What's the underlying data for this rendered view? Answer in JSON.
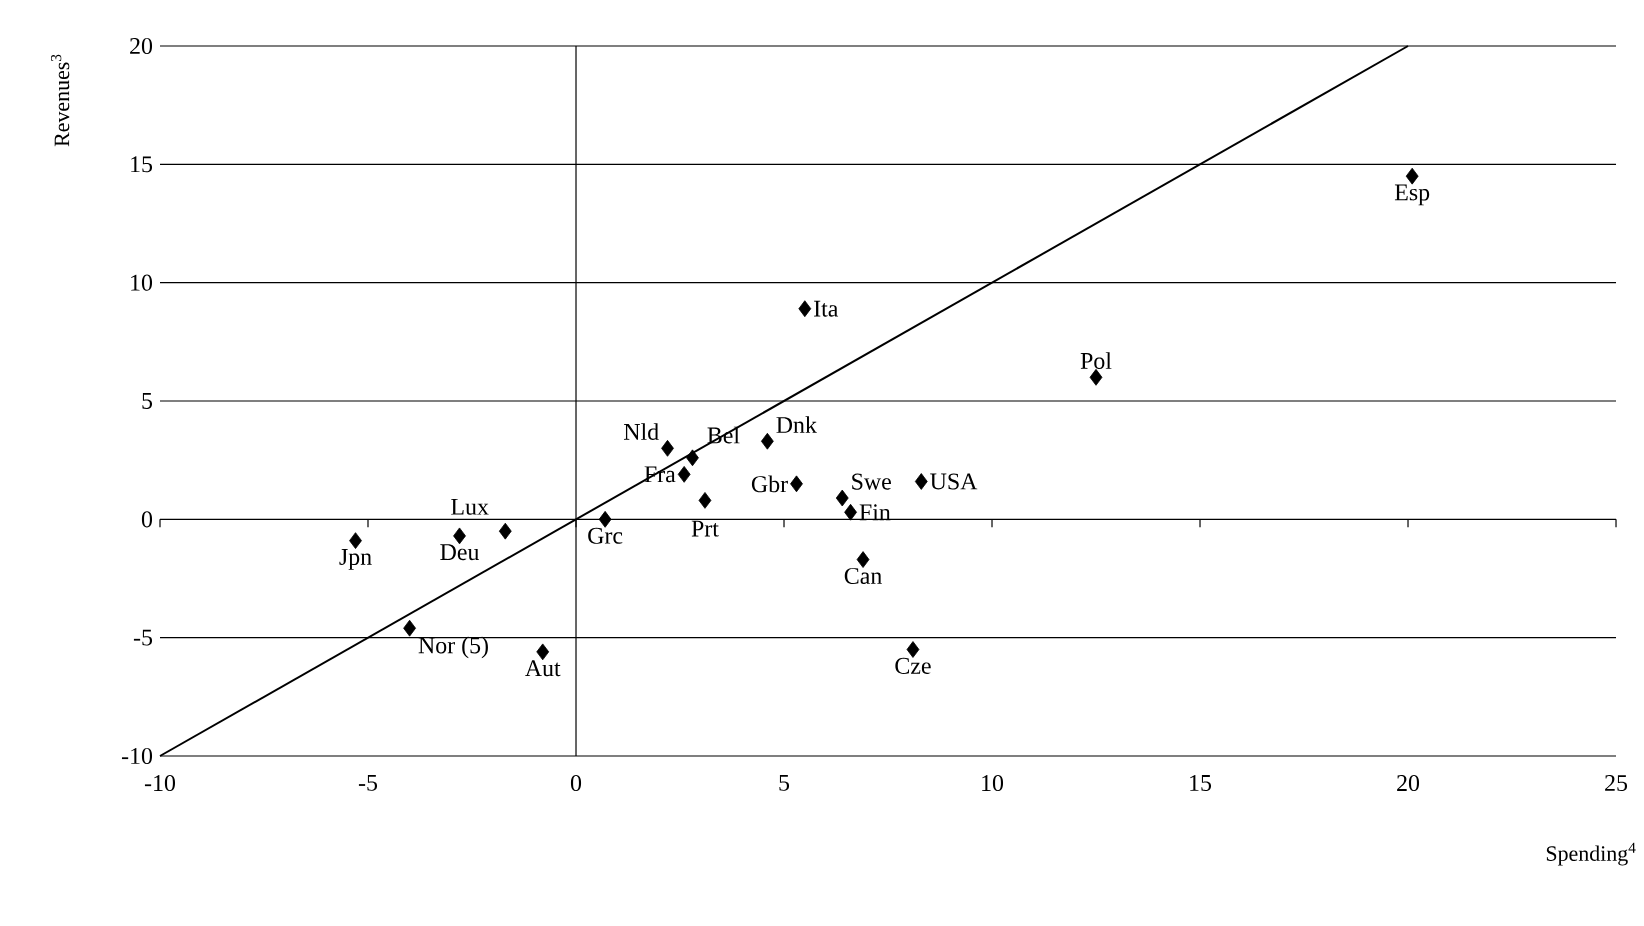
{
  "chart_data": {
    "type": "scatter",
    "xlabel": "Spending$^{4}$",
    "ylabel": "Revenues$^{3}$",
    "xlim": [
      -10,
      25
    ],
    "ylim": [
      -10,
      20
    ],
    "xticks": [
      -10,
      -5,
      0,
      5,
      10,
      15,
      20,
      25
    ],
    "yticks": [
      -10,
      -5,
      0,
      5,
      10,
      15,
      20
    ],
    "grid": "y",
    "marker": "diamond",
    "ref_lines": [
      {
        "axis": "x",
        "value": 0,
        "color": "#000000"
      }
    ],
    "series": [
      {
        "color": "#000000",
        "x": [
          -5.3,
          -2.8,
          -1.7,
          -4.0,
          -0.8,
          0.7,
          2.2,
          2.8,
          2.6,
          3.1,
          4.6,
          5.3,
          6.4,
          6.6,
          8.3,
          6.9,
          8.1,
          5.5,
          12.5,
          20.1
        ],
        "values": [
          -0.9,
          -0.7,
          -0.5,
          -4.6,
          -5.6,
          0.0,
          3.0,
          2.6,
          1.9,
          0.8,
          3.3,
          1.5,
          0.9,
          0.3,
          1.6,
          -1.7,
          -5.5,
          8.9,
          6.0,
          14.5
        ]
      },
      {
        "type": "line",
        "color": "#000000",
        "marker": "none",
        "x": [
          -10,
          20
        ],
        "values": [
          -10,
          20
        ]
      }
    ],
    "annotations": [
      {
        "text": "Jpn",
        "x": -5.3,
        "y": -0.9
      },
      {
        "text": "Deu",
        "x": -2.8,
        "y": -0.7
      },
      {
        "text": "Lux",
        "x": -1.7,
        "y": -0.5
      },
      {
        "text": "Nor (5)",
        "x": -4.0,
        "y": -4.6
      },
      {
        "text": "Aut",
        "x": -0.8,
        "y": -5.6
      },
      {
        "text": "Grc",
        "x": 0.7,
        "y": 0.0
      },
      {
        "text": "Nld",
        "x": 2.2,
        "y": 3.0
      },
      {
        "text": "Bel",
        "x": 2.8,
        "y": 2.6
      },
      {
        "text": "Fra",
        "x": 2.6,
        "y": 1.9
      },
      {
        "text": "Prt",
        "x": 3.1,
        "y": 0.8
      },
      {
        "text": "Dnk",
        "x": 4.6,
        "y": 3.3
      },
      {
        "text": "Gbr",
        "x": 5.3,
        "y": 1.5
      },
      {
        "text": "Swe",
        "x": 6.4,
        "y": 0.9
      },
      {
        "text": "Fin",
        "x": 6.6,
        "y": 0.3
      },
      {
        "text": "USA",
        "x": 8.3,
        "y": 1.6
      },
      {
        "text": "Can",
        "x": 6.9,
        "y": -1.7
      },
      {
        "text": "Cze",
        "x": 8.1,
        "y": -5.5
      },
      {
        "text": "Ita",
        "x": 5.5,
        "y": 8.9
      },
      {
        "text": "Pol",
        "x": 12.5,
        "y": 6.0
      },
      {
        "text": "Esp",
        "x": 20.1,
        "y": 14.5
      }
    ]
  }
}
